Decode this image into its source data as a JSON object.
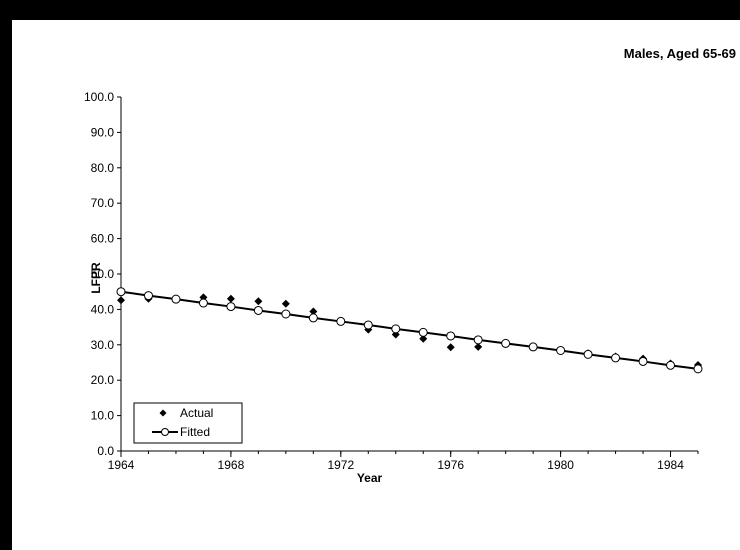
{
  "chart_data": {
    "type": "scatter",
    "title": "Males, Aged 65-69",
    "xlabel": "Year",
    "ylabel": "LFPR",
    "xlim": [
      1964,
      1985
    ],
    "ylim": [
      0,
      100
    ],
    "xticks": [
      1964,
      1968,
      1972,
      1976,
      1980,
      1984
    ],
    "yticks": [
      "0.0",
      "10.0",
      "20.0",
      "30.0",
      "40.0",
      "50.0",
      "60.0",
      "70.0",
      "80.0",
      "90.0",
      "100.0"
    ],
    "legend_position": "bottom-left",
    "series": [
      {
        "name": "Actual",
        "marker": "diamond",
        "color": "#000000",
        "x": [
          1964,
          1965,
          1966,
          1967,
          1968,
          1969,
          1970,
          1971,
          1972,
          1973,
          1974,
          1975,
          1976,
          1977,
          1978,
          1979,
          1980,
          1981,
          1982,
          1983,
          1984,
          1985
        ],
        "y": [
          42.6,
          43.0,
          42.8,
          43.4,
          43.0,
          42.3,
          41.6,
          39.4,
          36.8,
          34.3,
          32.9,
          31.7,
          29.3,
          29.4,
          30.2,
          29.3,
          28.3,
          27.6,
          26.7,
          26.1,
          24.7,
          24.3
        ]
      },
      {
        "name": "Fitted",
        "marker": "circle-open",
        "line": true,
        "color": "#000000",
        "x": [
          1964,
          1965,
          1966,
          1967,
          1968,
          1969,
          1970,
          1971,
          1972,
          1973,
          1974,
          1975,
          1976,
          1977,
          1978,
          1979,
          1980,
          1981,
          1982,
          1983,
          1984,
          1985
        ],
        "y": [
          45.0,
          43.9,
          42.9,
          41.8,
          40.8,
          39.7,
          38.7,
          37.6,
          36.6,
          35.6,
          34.5,
          33.5,
          32.5,
          31.4,
          30.4,
          29.4,
          28.4,
          27.3,
          26.3,
          25.3,
          24.2,
          23.2
        ]
      }
    ]
  }
}
